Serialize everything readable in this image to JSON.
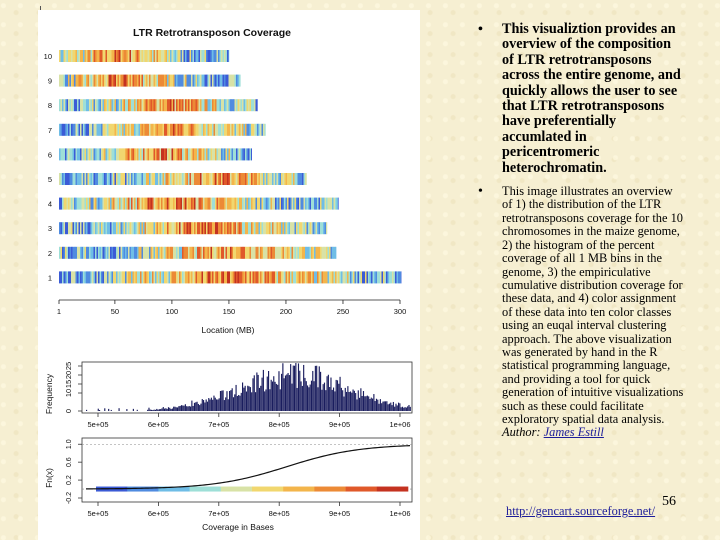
{
  "figure": {
    "title": "LTR Retrotransposon Coverage",
    "chromosomes": [
      {
        "label": "10",
        "length_mb": 150
      },
      {
        "label": "9",
        "length_mb": 160
      },
      {
        "label": "8",
        "length_mb": 175
      },
      {
        "label": "7",
        "length_mb": 182
      },
      {
        "label": "6",
        "length_mb": 170
      },
      {
        "label": "5",
        "length_mb": 218
      },
      {
        "label": "4",
        "length_mb": 246
      },
      {
        "label": "3",
        "length_mb": 236
      },
      {
        "label": "2",
        "length_mb": 244
      },
      {
        "label": "1",
        "length_mb": 301
      }
    ],
    "top_xticks": [
      "1",
      "50",
      "100",
      "150",
      "200",
      "250",
      "300"
    ],
    "top_xlabel": "Location (MB)",
    "hist_ylabel": "Frequency",
    "hist_yticks": [
      "0",
      "10",
      "15",
      "20",
      "25"
    ],
    "cdf_ylabel": "Fn(x)",
    "cdf_yticks": [
      "-0.2",
      "0.2",
      "0.6",
      "1.0"
    ],
    "bottom_xticks": [
      "5e+05",
      "6e+05",
      "7e+05",
      "8e+05",
      "9e+05",
      "1e+06"
    ],
    "bottom_xlabel": "Coverage in Bases",
    "palette": [
      "#3b5bd6",
      "#4f8be0",
      "#6fbde6",
      "#9edfd7",
      "#d8e2a6",
      "#f1d76f",
      "#f3b54b",
      "#ec8a36",
      "#e0592a",
      "#c43220"
    ]
  },
  "text": {
    "bullet1": "This visualiztion provides an overview of the composition of LTR retrotransposons across the entire genome, and quickly allows the user to see that LTR retrotransposons have preferentially accumlated in pericentromeric heterochromatin.",
    "bullet2": "This image illustrates an overview of 1) the distribution of the LTR retrotransposons coverage for the 10 chromosomes in the maize genome, 2) the histogram of the percent coverage of all 1 MB bins in the genome, 3) the empiriculative cumulative distribution coverage for these data, and 4) color assignment of these data into ten color classes using an euqal interval clustering approach. The above visualization was generated by hand in the R statistical programming language, and providing a tool for quick generation of intuitive visualizations such as these could facilitate exploratory spatial data analysis.",
    "author_label": "Author:",
    "author_name": "James Estill",
    "url": "http://gencart.sourceforge.net/",
    "page_number": "56"
  }
}
